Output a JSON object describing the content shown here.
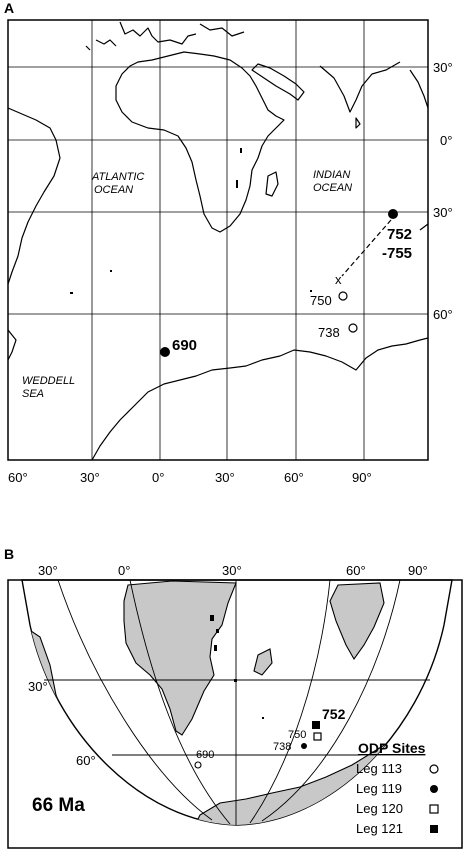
{
  "panel_a": {
    "letter": "A",
    "ocean_labels": {
      "atlantic": [
        "ATLANTIC",
        "OCEAN"
      ],
      "indian": [
        "INDIAN",
        "OCEAN"
      ],
      "weddell": [
        "WEDDELL",
        "SEA"
      ]
    },
    "lat_ticks": [
      "30°",
      "0°",
      "30°",
      "60°"
    ],
    "lon_ticks": [
      "60°",
      "30°",
      "0°",
      "30°",
      "60°",
      "90°"
    ],
    "sites": [
      {
        "label": "690",
        "type": "filled-circle"
      },
      {
        "label": "752",
        "label2": "-755",
        "type": "filled-circle"
      },
      {
        "label": "750",
        "type": "open-circle"
      },
      {
        "label": "738",
        "type": "open-circle"
      }
    ]
  },
  "panel_b": {
    "letter": "B",
    "top_lon_ticks": [
      "30°",
      "0°",
      "30°",
      "60°",
      "90°"
    ],
    "lat_ticks": [
      "30°",
      "60°"
    ],
    "age_label": "66 Ma",
    "site_labels": [
      "752",
      "750",
      "738",
      "690"
    ],
    "legend": {
      "title": "ODP Sites",
      "items": [
        {
          "label": "Leg 113",
          "symbol": "open-circle"
        },
        {
          "label": "Leg 119",
          "symbol": "filled-circle"
        },
        {
          "label": "Leg 120",
          "symbol": "open-square"
        },
        {
          "label": "Leg 121",
          "symbol": "filled-square"
        }
      ]
    }
  },
  "colors": {
    "land_fill_b": "#c8c8c8",
    "ink": "#000000"
  }
}
